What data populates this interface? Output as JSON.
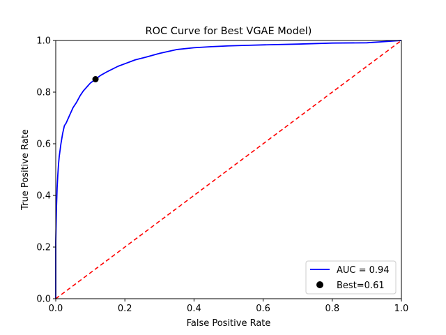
{
  "chart_data": {
    "type": "line",
    "title": "ROC Curve for Best VGAE Model)",
    "xlabel": "False Positive Rate",
    "ylabel": "True Positive Rate",
    "xlim": [
      0.0,
      1.0
    ],
    "ylim": [
      0.0,
      1.0
    ],
    "xticks": [
      0.0,
      0.2,
      0.4,
      0.6,
      0.8,
      1.0
    ],
    "yticks": [
      0.0,
      0.2,
      0.4,
      0.6,
      0.8,
      1.0
    ],
    "xtick_labels": [
      "0.0",
      "0.2",
      "0.4",
      "0.6",
      "0.8",
      "1.0"
    ],
    "ytick_labels": [
      "0.0",
      "0.2",
      "0.4",
      "0.6",
      "0.8",
      "1.0"
    ],
    "grid": false,
    "legend_position": "lower-right",
    "series": [
      {
        "name": "AUC = 0.94",
        "kind": "line",
        "style": "solid",
        "color": "#0000ff",
        "x": [
          0.0,
          0.0,
          0.002,
          0.004,
          0.006,
          0.008,
          0.01,
          0.015,
          0.02,
          0.025,
          0.03,
          0.04,
          0.05,
          0.06,
          0.07,
          0.08,
          0.09,
          0.1,
          0.115,
          0.13,
          0.15,
          0.18,
          0.2,
          0.23,
          0.26,
          0.3,
          0.35,
          0.4,
          0.45,
          0.5,
          0.55,
          0.6,
          0.7,
          0.8,
          0.9,
          1.0
        ],
        "y": [
          0.0,
          0.22,
          0.35,
          0.43,
          0.48,
          0.52,
          0.55,
          0.6,
          0.64,
          0.67,
          0.68,
          0.71,
          0.74,
          0.76,
          0.785,
          0.805,
          0.82,
          0.835,
          0.85,
          0.865,
          0.88,
          0.9,
          0.91,
          0.925,
          0.935,
          0.95,
          0.965,
          0.972,
          0.976,
          0.979,
          0.981,
          0.983,
          0.986,
          0.99,
          0.991,
          1.0
        ]
      },
      {
        "name": "",
        "kind": "line",
        "style": "dashed",
        "color": "#ff0000",
        "x": [
          0.0,
          1.0
        ],
        "y": [
          0.0,
          1.0
        ]
      },
      {
        "name": "Best=0.61",
        "kind": "scatter",
        "color": "#000000",
        "x": [
          0.115
        ],
        "y": [
          0.85
        ]
      }
    ]
  }
}
